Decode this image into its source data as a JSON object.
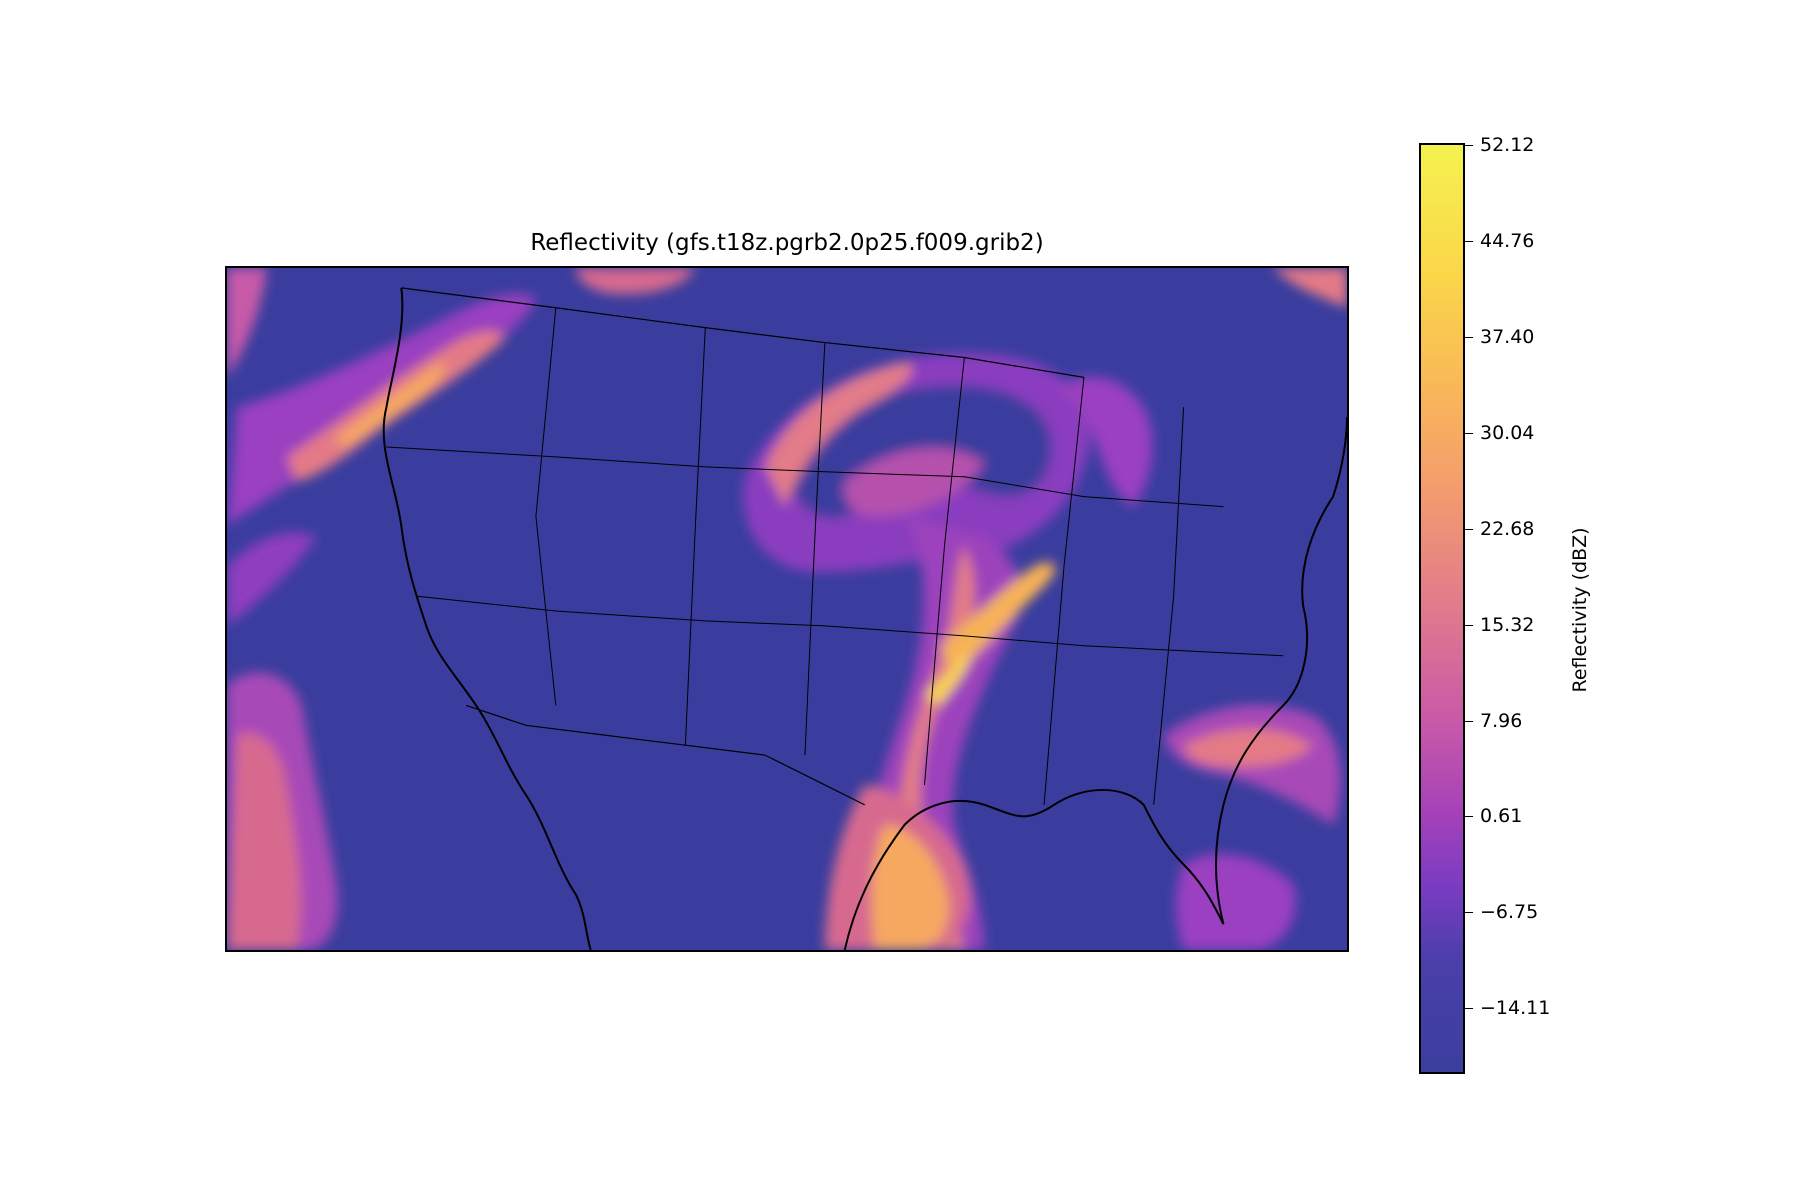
{
  "title": "Reflectivity (gfs.t18z.pgrb2.0p25.f009.grib2)",
  "colorbar": {
    "label": "Reflectivity (dBZ)",
    "min": -19.0,
    "max": 52.12,
    "ticks": [
      "52.12",
      "44.76",
      "37.40",
      "30.04",
      "22.68",
      "15.32",
      "7.96",
      "0.61",
      "−6.75",
      "−14.11"
    ],
    "tick_values": [
      52.12,
      44.76,
      37.4,
      30.04,
      22.68,
      15.32,
      7.96,
      0.61,
      -6.75,
      -14.11
    ],
    "colormap": "plasma"
  },
  "colors": {
    "background": "#3a3d9e",
    "low": "#7a3bc2",
    "mid": "#e07a8c",
    "high": "#fbd649",
    "peak": "#f4f24f",
    "boundaries": "#000000"
  }
}
